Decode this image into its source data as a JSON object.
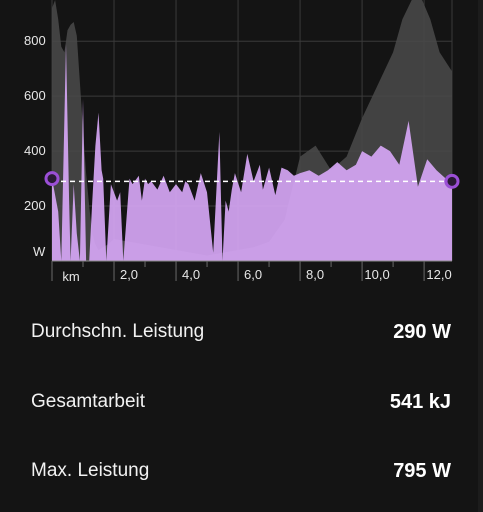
{
  "colors": {
    "background": "#141414",
    "power_fill": "#d6a6f5",
    "elevation_fill": "#4a4a4a",
    "average_line": "#ffffff",
    "marker": "#9b4fd6"
  },
  "chart_data": {
    "type": "area",
    "xlabel": "km",
    "ylabel": "W",
    "x_ticks": [
      "2,0",
      "4,0",
      "6,0",
      "8,0",
      "10,0",
      "12,0"
    ],
    "y_ticks": [
      "200",
      "400",
      "600",
      "800"
    ],
    "xlim": [
      0,
      12.9
    ],
    "ylim": [
      0,
      950
    ],
    "grid": true,
    "average_power": 290,
    "series": [
      {
        "kind": "power",
        "x": [
          0.0,
          0.2,
          0.3,
          0.45,
          0.55,
          0.6,
          0.7,
          0.8,
          0.9,
          1.0,
          1.1,
          1.2,
          1.3,
          1.4,
          1.5,
          1.6,
          1.65,
          1.75,
          1.9,
          2.1,
          2.2,
          2.3,
          2.5,
          2.6,
          2.8,
          2.9,
          3.0,
          3.1,
          3.2,
          3.4,
          3.6,
          3.8,
          4.0,
          4.2,
          4.3,
          4.4,
          4.6,
          4.8,
          5.0,
          5.2,
          5.4,
          5.5,
          5.6,
          5.7,
          5.8,
          5.9,
          6.1,
          6.3,
          6.5,
          6.7,
          6.8,
          7.0,
          7.2,
          7.4,
          7.6,
          7.8,
          8.0,
          8.3,
          8.6,
          8.9,
          9.2,
          9.5,
          9.8,
          10.0,
          10.3,
          10.6,
          10.9,
          11.2,
          11.5,
          11.8,
          12.1,
          12.4,
          12.7,
          12.9
        ],
        "values": [
          300,
          180,
          0,
          790,
          220,
          0,
          280,
          100,
          0,
          590,
          0,
          0,
          220,
          420,
          540,
          330,
          300,
          0,
          280,
          220,
          250,
          0,
          300,
          280,
          310,
          220,
          300,
          280,
          290,
          260,
          310,
          250,
          280,
          250,
          290,
          280,
          220,
          320,
          250,
          30,
          470,
          0,
          220,
          180,
          260,
          320,
          250,
          390,
          290,
          350,
          260,
          340,
          240,
          340,
          330,
          310,
          320,
          330,
          310,
          330,
          360,
          330,
          350,
          400,
          380,
          420,
          400,
          350,
          510,
          270,
          370,
          330,
          300,
          290
        ]
      },
      {
        "kind": "elevation",
        "x": [
          0.0,
          0.1,
          0.2,
          0.3,
          0.4,
          0.5,
          0.6,
          0.7,
          0.8,
          0.9,
          1.0,
          1.1,
          1.2,
          1.3,
          1.4,
          1.5,
          1.8,
          2.0,
          2.5,
          3.0,
          3.5,
          4.0,
          4.5,
          5.0,
          5.5,
          6.0,
          6.5,
          7.0,
          7.5,
          8.0,
          8.5,
          9.0,
          9.5,
          10.0,
          10.5,
          11.0,
          11.3,
          11.6,
          11.9,
          12.2,
          12.5,
          12.9
        ],
        "values": [
          920,
          950,
          880,
          780,
          760,
          840,
          860,
          870,
          820,
          650,
          480,
          320,
          200,
          100,
          60,
          40,
          60,
          80,
          70,
          60,
          50,
          40,
          30,
          20,
          30,
          40,
          50,
          70,
          150,
          380,
          420,
          330,
          380,
          520,
          640,
          760,
          880,
          950,
          960,
          880,
          760,
          690
        ]
      }
    ]
  },
  "stats": {
    "avg_power": {
      "label": "Durchschn. Leistung",
      "value": "290 W"
    },
    "total_work": {
      "label": "Gesamtarbeit",
      "value": "541 kJ"
    },
    "max_power": {
      "label": "Max. Leistung",
      "value": "795 W"
    }
  }
}
